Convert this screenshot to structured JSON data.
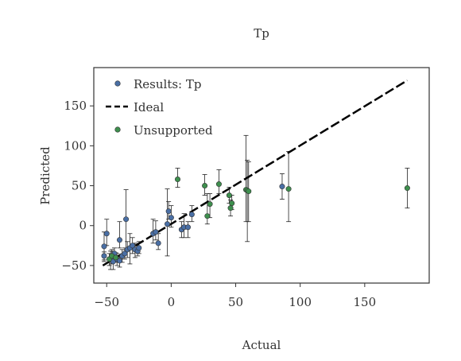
{
  "chart_data": {
    "type": "scatter",
    "title": "Tp",
    "xlabel": "Actual",
    "ylabel": "Predicted",
    "xlim": [
      -60,
      200
    ],
    "ylim": [
      -72,
      198
    ],
    "xticks": [
      -50,
      0,
      50,
      100,
      150
    ],
    "yticks": [
      -50,
      0,
      50,
      100,
      150
    ],
    "tick_labels_x": [
      "−50",
      "0",
      "50",
      "100",
      "150"
    ],
    "tick_labels_y": [
      "−50",
      "0",
      "50",
      "100",
      "150"
    ],
    "grid": false,
    "legend": {
      "placement": "top-left",
      "entries": [
        "Results: Tp",
        "Ideal",
        "Unsupported"
      ]
    },
    "colors": {
      "results": "#4a6fa5",
      "unsupported": "#3e8f4e",
      "ideal": "#000000",
      "errorbar": "#222222",
      "frame": "#333333"
    },
    "ideal_line": {
      "x": [
        -53,
        183
      ],
      "y": [
        -50,
        182
      ]
    },
    "series": [
      {
        "name": "Results: Tp",
        "points": [
          {
            "x": -52,
            "y": -26,
            "lo": -45,
            "hi": -8
          },
          {
            "x": -52,
            "y": -38,
            "lo": -43,
            "hi": -33
          },
          {
            "x": -50,
            "y": -10,
            "lo": -25,
            "hi": 8
          },
          {
            "x": -47,
            "y": -42,
            "lo": -55,
            "hi": -32
          },
          {
            "x": -46,
            "y": -40,
            "lo": -48,
            "hi": -30
          },
          {
            "x": -45,
            "y": -45,
            "lo": -55,
            "hi": -35
          },
          {
            "x": -44,
            "y": -35,
            "lo": -42,
            "hi": -28
          },
          {
            "x": -42,
            "y": -42,
            "lo": -50,
            "hi": -35
          },
          {
            "x": -40,
            "y": -18,
            "lo": -28,
            "hi": 5
          },
          {
            "x": -40,
            "y": -44,
            "lo": -52,
            "hi": -38
          },
          {
            "x": -38,
            "y": -38,
            "lo": -46,
            "hi": -30
          },
          {
            "x": -36,
            "y": -35,
            "lo": -42,
            "hi": -28
          },
          {
            "x": -35,
            "y": 8,
            "lo": -30,
            "hi": 45
          },
          {
            "x": -34,
            "y": -30,
            "lo": -40,
            "hi": -20
          },
          {
            "x": -32,
            "y": -28,
            "lo": -48,
            "hi": -10
          },
          {
            "x": -30,
            "y": -25,
            "lo": -35,
            "hi": -15
          },
          {
            "x": -28,
            "y": -30,
            "lo": -40,
            "hi": -22
          },
          {
            "x": -26,
            "y": -32,
            "lo": -38,
            "hi": -25
          },
          {
            "x": -25,
            "y": -28,
            "lo": -35,
            "hi": -20
          },
          {
            "x": -14,
            "y": -10,
            "lo": -22,
            "hi": 8
          },
          {
            "x": -12,
            "y": -8,
            "lo": -18,
            "hi": 6
          },
          {
            "x": -10,
            "y": -22,
            "lo": -30,
            "hi": -10
          },
          {
            "x": -3,
            "y": 2,
            "lo": -38,
            "hi": 46
          },
          {
            "x": -2,
            "y": 18,
            "lo": 8,
            "hi": 30
          },
          {
            "x": 0,
            "y": 10,
            "lo": -2,
            "hi": 25
          },
          {
            "x": 8,
            "y": -5,
            "lo": -15,
            "hi": 5
          },
          {
            "x": 10,
            "y": -2,
            "lo": -15,
            "hi": 15
          },
          {
            "x": 13,
            "y": -2,
            "lo": -15,
            "hi": 5
          },
          {
            "x": 16,
            "y": 14,
            "lo": 5,
            "hi": 25
          },
          {
            "x": 86,
            "y": 49,
            "lo": 33,
            "hi": 65
          }
        ]
      },
      {
        "name": "Unsupported",
        "points": [
          {
            "x": -48,
            "y": -42,
            "lo": -50,
            "hi": -35
          },
          {
            "x": -46,
            "y": -38,
            "lo": -44,
            "hi": -32
          },
          {
            "x": -43,
            "y": -40,
            "lo": -46,
            "hi": -34
          },
          {
            "x": 5,
            "y": 58,
            "lo": 48,
            "hi": 72
          },
          {
            "x": 26,
            "y": 50,
            "lo": 38,
            "hi": 64
          },
          {
            "x": 28,
            "y": 12,
            "lo": 2,
            "hi": 40
          },
          {
            "x": 30,
            "y": 27,
            "lo": 10,
            "hi": 40
          },
          {
            "x": 37,
            "y": 52,
            "lo": 40,
            "hi": 70
          },
          {
            "x": 45,
            "y": 38,
            "lo": 28,
            "hi": 48
          },
          {
            "x": 46,
            "y": 22,
            "lo": 12,
            "hi": 32
          },
          {
            "x": 47,
            "y": 28,
            "lo": 20,
            "hi": 38
          },
          {
            "x": 58,
            "y": 45,
            "lo": 5,
            "hi": 113
          },
          {
            "x": 59,
            "y": 44,
            "lo": -20,
            "hi": 82
          },
          {
            "x": 60,
            "y": 43,
            "lo": 5,
            "hi": 80
          },
          {
            "x": 91,
            "y": 46,
            "lo": 5,
            "hi": 93
          },
          {
            "x": 183,
            "y": 47,
            "lo": 22,
            "hi": 72
          }
        ]
      }
    ]
  }
}
